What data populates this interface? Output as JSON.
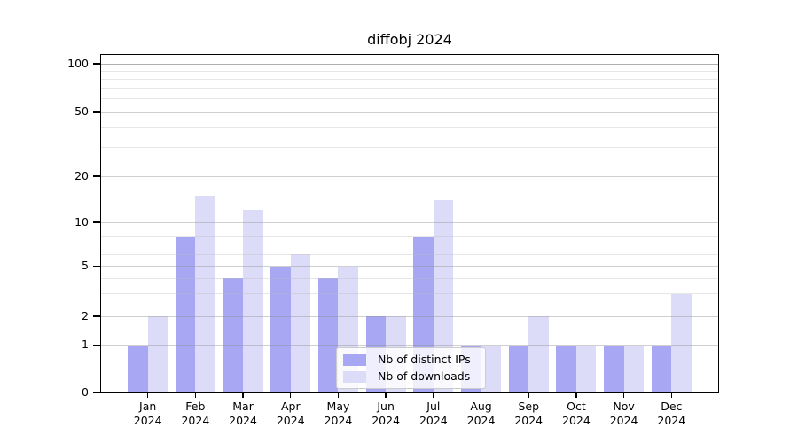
{
  "chart_data": {
    "type": "bar",
    "title": "diffobj 2024",
    "categories": [
      "Jan",
      "Feb",
      "Mar",
      "Apr",
      "May",
      "Jun",
      "Jul",
      "Aug",
      "Sep",
      "Oct",
      "Nov",
      "Dec"
    ],
    "year_label": "2024",
    "series": [
      {
        "name": "Nb of distinct IPs",
        "color": "#a7a7f3",
        "values": [
          1,
          8,
          4,
          5,
          4,
          2,
          8,
          1,
          1,
          1,
          1,
          1
        ]
      },
      {
        "name": "Nb of downloads",
        "color": "#dcdcf8",
        "values": [
          2,
          15,
          12,
          6,
          5,
          2,
          14,
          1,
          2,
          1,
          1,
          3
        ]
      }
    ],
    "yaxis": {
      "scale": "log-like with zero baseline",
      "tick_values": [
        0,
        1,
        2,
        5,
        10,
        20,
        50,
        100
      ],
      "tick_labels": [
        "0",
        "1",
        "2",
        "5",
        "10",
        "20",
        "50",
        "100"
      ],
      "minor_gridline_values": [
        3,
        4,
        6,
        7,
        8,
        9,
        30,
        40,
        60,
        70,
        80,
        90
      ],
      "ylim": [
        0,
        115
      ]
    },
    "grid": true,
    "legend_position": "bottom-center",
    "colors": {
      "major_grid": "#c8c8c8",
      "top_grid_100": "#b2b2b2",
      "minor_grid": "#ebebeb",
      "axis_frame": "#000000",
      "legend_border": "#cccccc"
    }
  }
}
